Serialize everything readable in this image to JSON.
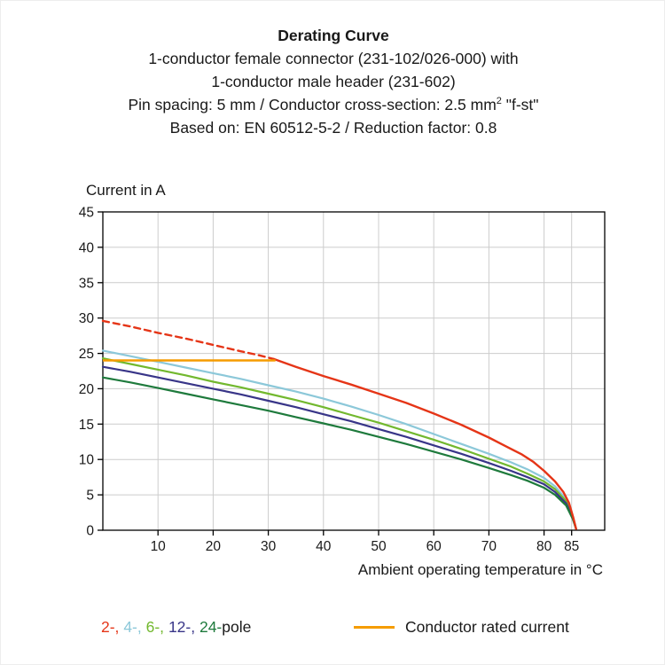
{
  "title_block": {
    "line1": "Derating Curve",
    "line2": "1-conductor female connector (231-102/026-000) with",
    "line3": "1-conductor male header (231-602)",
    "line4_pre": "Pin spacing: 5 mm / Conductor cross-section: 2.5 mm",
    "line4_sup": "2",
    "line4_post": " \"f-st\"",
    "line5": "Based on: EN 60512-5-2 / Reduction factor: 0.8"
  },
  "chart_data": {
    "type": "line",
    "title": "Derating Curve",
    "xlabel": "Ambient operating temperature in °C",
    "ylabel": "Current in A",
    "xlim": [
      0,
      91
    ],
    "ylim": [
      0,
      45
    ],
    "x_ticks": [
      10,
      20,
      30,
      40,
      50,
      60,
      70,
      80,
      85
    ],
    "y_ticks": [
      0,
      5,
      10,
      15,
      20,
      25,
      30,
      35,
      40,
      45
    ],
    "grid": true,
    "grid_color": "#cccccc",
    "axis_color": "#000000",
    "text_color": "#191919",
    "legend_position": "bottom",
    "series": [
      {
        "id": "4-pole",
        "name": "4-pole",
        "color": "#8cc8d9",
        "dash": null,
        "width": 2.2,
        "points": [
          [
            0,
            25.4
          ],
          [
            5,
            24.6
          ],
          [
            10,
            23.8
          ],
          [
            15,
            23.0
          ],
          [
            20,
            22.2
          ],
          [
            25,
            21.4
          ],
          [
            30,
            20.5
          ],
          [
            35,
            19.6
          ],
          [
            40,
            18.6
          ],
          [
            45,
            17.5
          ],
          [
            50,
            16.3
          ],
          [
            55,
            15.0
          ],
          [
            60,
            13.6
          ],
          [
            65,
            12.2
          ],
          [
            70,
            10.8
          ],
          [
            74,
            9.6
          ],
          [
            77,
            8.6
          ],
          [
            80,
            7.4
          ],
          [
            82,
            6.2
          ],
          [
            84,
            4.4
          ],
          [
            85.2,
            2.0
          ],
          [
            85.8,
            0.2
          ]
        ]
      },
      {
        "id": "6-pole",
        "name": "6-pole",
        "color": "#72b82e",
        "dash": null,
        "width": 2.2,
        "points": [
          [
            0,
            24.3
          ],
          [
            5,
            23.5
          ],
          [
            10,
            22.7
          ],
          [
            15,
            21.9
          ],
          [
            20,
            21.0
          ],
          [
            25,
            20.2
          ],
          [
            30,
            19.3
          ],
          [
            35,
            18.4
          ],
          [
            40,
            17.4
          ],
          [
            45,
            16.3
          ],
          [
            50,
            15.2
          ],
          [
            55,
            14.0
          ],
          [
            60,
            12.8
          ],
          [
            65,
            11.5
          ],
          [
            70,
            10.1
          ],
          [
            74,
            9.0
          ],
          [
            77,
            8.0
          ],
          [
            80,
            6.9
          ],
          [
            82,
            5.8
          ],
          [
            84,
            4.1
          ],
          [
            85.2,
            1.9
          ],
          [
            85.8,
            0.2
          ]
        ]
      },
      {
        "id": "12-pole",
        "name": "12-pole",
        "color": "#383588",
        "dash": null,
        "width": 2.2,
        "points": [
          [
            0,
            23.1
          ],
          [
            5,
            22.4
          ],
          [
            10,
            21.6
          ],
          [
            15,
            20.8
          ],
          [
            20,
            20.0
          ],
          [
            25,
            19.2
          ],
          [
            30,
            18.3
          ],
          [
            35,
            17.4
          ],
          [
            40,
            16.4
          ],
          [
            45,
            15.4
          ],
          [
            50,
            14.3
          ],
          [
            55,
            13.2
          ],
          [
            60,
            12.0
          ],
          [
            65,
            10.8
          ],
          [
            70,
            9.5
          ],
          [
            74,
            8.4
          ],
          [
            77,
            7.5
          ],
          [
            80,
            6.5
          ],
          [
            82,
            5.4
          ],
          [
            84,
            3.8
          ],
          [
            85.2,
            1.8
          ],
          [
            85.8,
            0.2
          ]
        ]
      },
      {
        "id": "24-pole",
        "name": "24-pole",
        "color": "#1e7a3c",
        "dash": null,
        "width": 2.2,
        "points": [
          [
            0,
            21.6
          ],
          [
            5,
            20.9
          ],
          [
            10,
            20.1
          ],
          [
            15,
            19.3
          ],
          [
            20,
            18.5
          ],
          [
            25,
            17.7
          ],
          [
            30,
            16.9
          ],
          [
            35,
            16.0
          ],
          [
            40,
            15.1
          ],
          [
            45,
            14.2
          ],
          [
            50,
            13.2
          ],
          [
            55,
            12.2
          ],
          [
            60,
            11.1
          ],
          [
            65,
            10.0
          ],
          [
            70,
            8.8
          ],
          [
            74,
            7.8
          ],
          [
            77,
            7.0
          ],
          [
            80,
            6.0
          ],
          [
            82,
            5.0
          ],
          [
            84,
            3.5
          ],
          [
            85.2,
            1.6
          ],
          [
            85.8,
            0.2
          ]
        ]
      },
      {
        "id": "2-pole-extrapolated",
        "name": "2-pole (dashed extrapolation)",
        "color": "#e53517",
        "dash": "7 5",
        "width": 2.4,
        "points": [
          [
            0,
            29.6
          ],
          [
            5,
            28.8
          ],
          [
            10,
            27.9
          ],
          [
            15,
            27.1
          ],
          [
            20,
            26.2
          ],
          [
            25,
            25.3
          ],
          [
            28,
            24.8
          ],
          [
            31,
            24.2
          ]
        ]
      },
      {
        "id": "2-pole",
        "name": "2-pole",
        "color": "#e53517",
        "dash": null,
        "width": 2.4,
        "points": [
          [
            31,
            24.2
          ],
          [
            35,
            23.1
          ],
          [
            40,
            21.8
          ],
          [
            45,
            20.6
          ],
          [
            50,
            19.3
          ],
          [
            55,
            18.0
          ],
          [
            60,
            16.5
          ],
          [
            65,
            14.9
          ],
          [
            70,
            13.1
          ],
          [
            73,
            11.9
          ],
          [
            76,
            10.7
          ],
          [
            78,
            9.7
          ],
          [
            80,
            8.4
          ],
          [
            82,
            6.9
          ],
          [
            83.5,
            5.4
          ],
          [
            84.5,
            3.9
          ],
          [
            85.3,
            1.8
          ],
          [
            85.8,
            0.2
          ]
        ]
      }
    ],
    "rated_current": {
      "label": "Conductor rated current",
      "value": 24,
      "x_start": 0,
      "x_end": 31.3,
      "color": "#f59c00"
    }
  },
  "legend": {
    "pole_items": [
      {
        "text": "2-,",
        "color": "#e53517"
      },
      {
        "text": "4-,",
        "color": "#8cc8d9"
      },
      {
        "text": "6-,",
        "color": "#72b82e"
      },
      {
        "text": "12-,",
        "color": "#383588"
      },
      {
        "text": "24-",
        "color": "#1e7a3c"
      }
    ],
    "pole_suffix": "pole",
    "rated": {
      "label": "Conductor rated current",
      "color": "#f59c00"
    }
  }
}
